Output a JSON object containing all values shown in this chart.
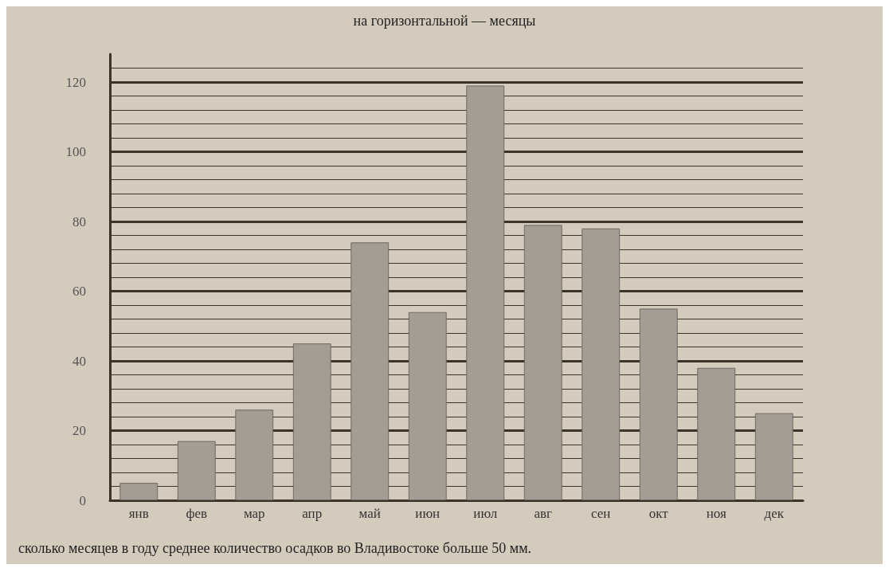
{
  "chart_data": {
    "type": "bar",
    "title": "на горизонтальной — месяцы",
    "categories": [
      "янв",
      "фев",
      "мар",
      "апр",
      "май",
      "июн",
      "июл",
      "авг",
      "сен",
      "окт",
      "ноя",
      "дек"
    ],
    "values": [
      5,
      17,
      26,
      45,
      74,
      54,
      119,
      79,
      78,
      55,
      38,
      25
    ],
    "color": "#a39d94",
    "ylim": [
      0,
      128
    ],
    "yticks": [
      0,
      {
        "value": 4,
        "label": null
      },
      {
        "value": 8,
        "label": null
      },
      {
        "value": 12,
        "label": null
      },
      {
        "value": 16,
        "label": null
      },
      20,
      {
        "value": 24,
        "label": null
      },
      {
        "value": 28,
        "label": null
      },
      {
        "value": 32,
        "label": null
      },
      {
        "value": 36,
        "label": null
      },
      40,
      {
        "value": 44,
        "label": null
      },
      {
        "value": 48,
        "label": null
      },
      {
        "value": 52,
        "label": null
      },
      {
        "value": 56,
        "label": null
      },
      60,
      {
        "value": 64,
        "label": null
      },
      {
        "value": 68,
        "label": null
      },
      {
        "value": 72,
        "label": null
      },
      {
        "value": 76,
        "label": null
      },
      80,
      {
        "value": 84,
        "label": null
      },
      {
        "value": 88,
        "label": null
      },
      {
        "value": 92,
        "label": null
      },
      {
        "value": 96,
        "label": null
      },
      100,
      {
        "value": 104,
        "label": null
      },
      {
        "value": 108,
        "label": null
      },
      {
        "value": 112,
        "label": null
      },
      {
        "value": 116,
        "label": null
      },
      120,
      {
        "value": 124,
        "label": null
      }
    ],
    "grid": "y",
    "annotations": [
      "сколько месяцев в году среднее количество осадков во Владивостоке больше 50 мм."
    ]
  }
}
